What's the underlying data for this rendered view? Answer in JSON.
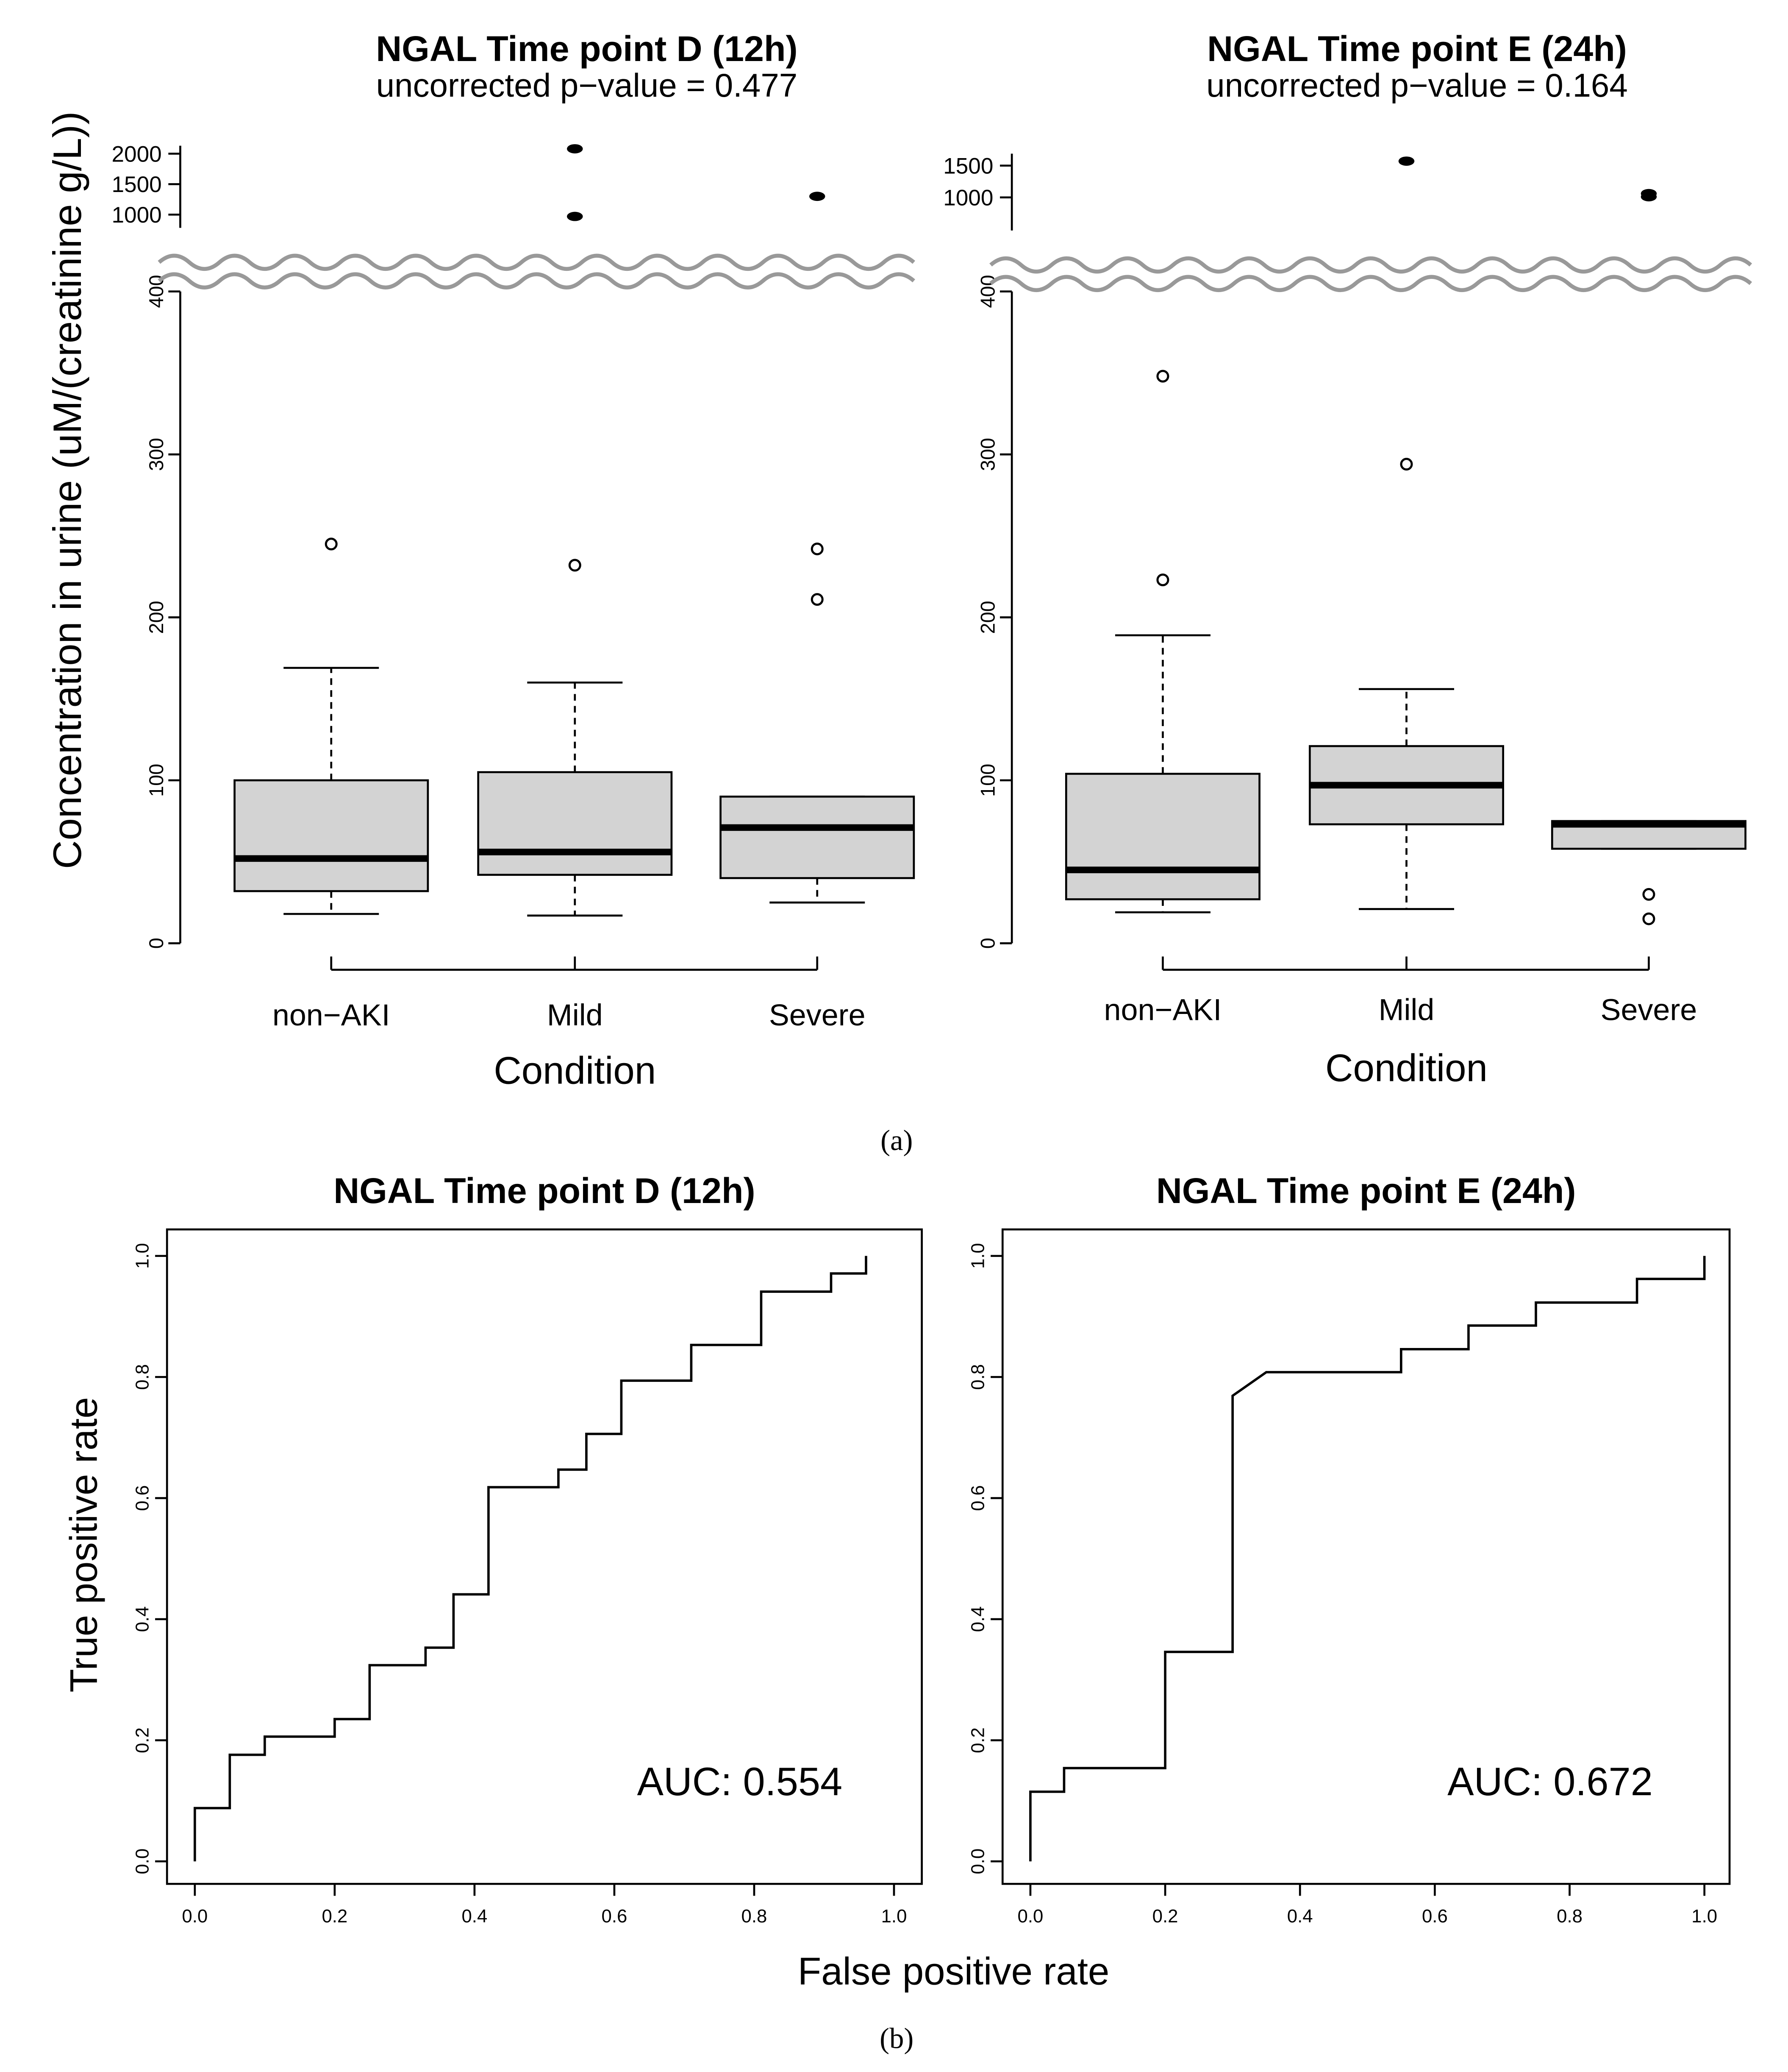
{
  "ylabel_box": "Concentration in urine (uM/(creatinine g/L))",
  "ylabel_roc": "True positive rate",
  "xlabel_roc": "False positive rate",
  "panel_a": "(a)",
  "panel_b": "(b)",
  "chart_data": [
    {
      "type": "box",
      "title": "NGAL Time point D (12h)",
      "subtitle": "uncorrected p−value = 0.477",
      "xlabel": "Condition",
      "ylabel": "Concentration in urine (uM/(creatinine g/L))",
      "ylim": [
        0,
        400
      ],
      "yticks": [
        0,
        100,
        200,
        300,
        400
      ],
      "ylim_upper": [
        900,
        2100
      ],
      "yticks_upper": [
        1000,
        1500,
        2000
      ],
      "axis_break": true,
      "categories": [
        "non−AKI",
        "Mild",
        "Severe"
      ],
      "boxes": [
        {
          "category": "non−AKI",
          "whisker_low": 18,
          "q1": 32,
          "median": 52,
          "q3": 100,
          "whisker_high": 169,
          "outliers": [
            245
          ]
        },
        {
          "category": "Mild",
          "whisker_low": 17,
          "q1": 42,
          "median": 56,
          "q3": 105,
          "whisker_high": 160,
          "outliers": [
            232,
            970,
            2080
          ]
        },
        {
          "category": "Severe",
          "whisker_low": 25,
          "q1": 40,
          "median": 71,
          "q3": 90,
          "whisker_high": 90,
          "outliers": [
            211,
            242,
            1300
          ]
        }
      ]
    },
    {
      "type": "box",
      "title": "NGAL Time point E (24h)",
      "subtitle": "uncorrected p−value = 0.164",
      "xlabel": "Condition",
      "ylabel": "",
      "ylim": [
        0,
        400
      ],
      "yticks": [
        0,
        100,
        200,
        300,
        400
      ],
      "ylim_upper": [
        900,
        1600
      ],
      "yticks_upper": [
        1000,
        1500
      ],
      "axis_break": true,
      "categories": [
        "non−AKI",
        "Mild",
        "Severe"
      ],
      "boxes": [
        {
          "category": "non−AKI",
          "whisker_low": 19,
          "q1": 27,
          "median": 45,
          "q3": 104,
          "whisker_high": 189,
          "outliers": [
            223,
            348
          ]
        },
        {
          "category": "Mild",
          "whisker_low": 21,
          "q1": 73,
          "median": 97,
          "q3": 121,
          "whisker_high": 156,
          "outliers": [
            294,
            1570
          ]
        },
        {
          "category": "Severe",
          "whisker_low": 58,
          "q1": 58,
          "median": 73,
          "q3": 75,
          "whisker_high": 75,
          "outliers": [
            15,
            30,
            1010,
            1060
          ]
        }
      ]
    },
    {
      "type": "line",
      "title": "NGAL Time point D (12h)",
      "xlabel": "False positive rate",
      "ylabel": "True positive rate",
      "xlim": [
        0,
        1
      ],
      "ylim": [
        0,
        1
      ],
      "ticks": [
        0.0,
        0.2,
        0.4,
        0.6,
        0.8,
        1.0
      ],
      "annotation": "AUC: 0.554",
      "x": [
        0.0,
        0.0,
        0.05,
        0.05,
        0.1,
        0.1,
        0.2,
        0.2,
        0.25,
        0.25,
        0.33,
        0.33,
        0.37,
        0.37,
        0.42,
        0.42,
        0.52,
        0.52,
        0.56,
        0.56,
        0.61,
        0.61,
        0.71,
        0.71,
        0.81,
        0.81,
        0.91,
        0.91,
        0.96,
        0.96
      ],
      "y": [
        0.0,
        0.088,
        0.088,
        0.176,
        0.176,
        0.206,
        0.206,
        0.235,
        0.235,
        0.324,
        0.324,
        0.353,
        0.353,
        0.441,
        0.441,
        0.618,
        0.618,
        0.647,
        0.647,
        0.706,
        0.706,
        0.794,
        0.794,
        0.853,
        0.853,
        0.941,
        0.941,
        0.971,
        0.971,
        1.0
      ]
    },
    {
      "type": "line",
      "title": "NGAL Time point E (24h)",
      "xlabel": "False positive rate",
      "ylabel": "True positive rate",
      "xlim": [
        0,
        1
      ],
      "ylim": [
        0,
        1
      ],
      "ticks": [
        0.0,
        0.2,
        0.4,
        0.6,
        0.8,
        1.0
      ],
      "annotation": "AUC: 0.672",
      "x": [
        0.0,
        0.0,
        0.05,
        0.05,
        0.2,
        0.2,
        0.3,
        0.3,
        0.35,
        0.55,
        0.55,
        0.65,
        0.65,
        0.75,
        0.75,
        0.9,
        0.9,
        1.0,
        1.0
      ],
      "y": [
        0.0,
        0.115,
        0.115,
        0.154,
        0.154,
        0.346,
        0.346,
        0.769,
        0.808,
        0.808,
        0.846,
        0.846,
        0.885,
        0.885,
        0.923,
        0.923,
        0.962,
        0.962,
        1.0
      ]
    }
  ]
}
